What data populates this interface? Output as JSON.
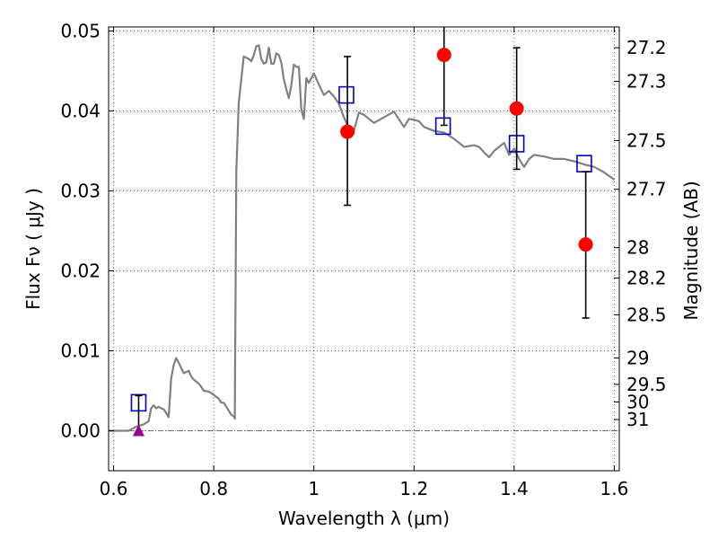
{
  "chart_data": {
    "type": "scatter",
    "xlabel": "Wavelength  λ (μm)",
    "ylabel": "Flux  Fν  ( μJy )",
    "y2label": "Magnitude (AB)",
    "xlim": [
      0.59,
      1.61
    ],
    "ylim": [
      -0.005,
      0.0505
    ],
    "x_ticks": [
      {
        "value": 0.6,
        "label": "0.6"
      },
      {
        "value": 0.8,
        "label": "0.8"
      },
      {
        "value": 1.0,
        "label": "1"
      },
      {
        "value": 1.2,
        "label": "1.2"
      },
      {
        "value": 1.4,
        "label": "1.4"
      },
      {
        "value": 1.6,
        "label": "1.6"
      }
    ],
    "y_ticks": [
      {
        "value": 0.0,
        "label": "0.00"
      },
      {
        "value": 0.01,
        "label": "0.01"
      },
      {
        "value": 0.02,
        "label": "0.02"
      },
      {
        "value": 0.03,
        "label": "0.03"
      },
      {
        "value": 0.04,
        "label": "0.04"
      },
      {
        "value": 0.05,
        "label": "0.05"
      }
    ],
    "y2_ticks": [
      {
        "label": "27.2",
        "flux": 0.0479
      },
      {
        "label": "27.3",
        "flux": 0.0437
      },
      {
        "label": "27.5",
        "flux": 0.0363
      },
      {
        "label": "27.7",
        "flux": 0.0302
      },
      {
        "label": "28",
        "flux": 0.0229
      },
      {
        "label": "28.2",
        "flux": 0.0191
      },
      {
        "label": "28.5",
        "flux": 0.0145
      },
      {
        "label": "29",
        "flux": 0.0091
      },
      {
        "label": "29.5",
        "flux": 0.0058
      },
      {
        "label": "30",
        "flux": 0.0036
      },
      {
        "label": "31",
        "flux": 0.0014
      }
    ],
    "grid": true,
    "series": [
      {
        "kind": "line",
        "color": "#808080",
        "x": [
          0.59,
          0.63,
          0.645,
          0.66,
          0.67,
          0.675,
          0.68,
          0.685,
          0.69,
          0.695,
          0.7,
          0.705,
          0.71,
          0.715,
          0.72,
          0.725,
          0.73,
          0.74,
          0.75,
          0.755,
          0.76,
          0.77,
          0.775,
          0.78,
          0.79,
          0.8,
          0.81,
          0.815,
          0.82,
          0.83,
          0.835,
          0.84,
          0.842,
          0.845,
          0.85,
          0.86,
          0.87,
          0.875,
          0.88,
          0.885,
          0.89,
          0.895,
          0.9,
          0.905,
          0.91,
          0.915,
          0.92,
          0.925,
          0.93,
          0.935,
          0.94,
          0.945,
          0.95,
          0.955,
          0.96,
          0.965,
          0.97,
          0.975,
          0.98,
          0.985,
          0.99,
          1.0,
          1.01,
          1.02,
          1.03,
          1.04,
          1.05,
          1.06,
          1.065,
          1.07,
          1.08,
          1.09,
          1.1,
          1.12,
          1.14,
          1.16,
          1.18,
          1.19,
          1.2,
          1.21,
          1.22,
          1.24,
          1.26,
          1.28,
          1.3,
          1.32,
          1.33,
          1.34,
          1.35,
          1.36,
          1.37,
          1.38,
          1.39,
          1.4,
          1.41,
          1.42,
          1.43,
          1.44,
          1.46,
          1.48,
          1.5,
          1.52,
          1.54,
          1.56,
          1.58,
          1.6
        ],
        "y": [
          0.0,
          0.0,
          0.0005,
          0.0008,
          0.0012,
          0.0028,
          0.0032,
          0.0028,
          0.003,
          0.0028,
          0.0027,
          0.0022,
          0.0017,
          0.0065,
          0.0082,
          0.0091,
          0.0085,
          0.0072,
          0.0075,
          0.0068,
          0.0064,
          0.0059,
          0.0055,
          0.005,
          0.0049,
          0.0045,
          0.004,
          0.0035,
          0.0035,
          0.0025,
          0.002,
          0.0018,
          0.0015,
          0.0324,
          0.041,
          0.0468,
          0.0465,
          0.0462,
          0.047,
          0.0481,
          0.0482,
          0.0465,
          0.0459,
          0.0461,
          0.0479,
          0.0459,
          0.0459,
          0.0472,
          0.047,
          0.046,
          0.044,
          0.0427,
          0.0416,
          0.0432,
          0.0458,
          0.0455,
          0.0455,
          0.0401,
          0.039,
          0.0441,
          0.0435,
          0.0447,
          0.0433,
          0.042,
          0.0425,
          0.0418,
          0.0409,
          0.0392,
          0.0385,
          0.037,
          0.0375,
          0.0398,
          0.0395,
          0.0385,
          0.0392,
          0.0399,
          0.038,
          0.039,
          0.0389,
          0.0387,
          0.038,
          0.0375,
          0.0373,
          0.0365,
          0.0355,
          0.0357,
          0.0355,
          0.0348,
          0.0342,
          0.035,
          0.0355,
          0.036,
          0.0345,
          0.0353,
          0.034,
          0.033,
          0.034,
          0.0345,
          0.0343,
          0.034,
          0.034,
          0.0337,
          0.0333,
          0.033,
          0.0323,
          0.0314
        ]
      },
      {
        "kind": "markers",
        "marker": "open-square",
        "color": "#0000cc",
        "x": [
          0.65,
          1.065,
          1.258,
          1.405,
          1.54
        ],
        "y": [
          0.0035,
          0.042,
          0.0381,
          0.0359,
          0.0334
        ]
      },
      {
        "kind": "markers-with-errorbars",
        "marker": "filled-circle",
        "color": "#ff0000",
        "x": [
          1.067,
          1.26,
          1.405,
          1.543
        ],
        "y": [
          0.0374,
          0.047,
          0.0403,
          0.0233
        ],
        "yerr_low": [
          0.0282,
          0.0382,
          0.0327,
          0.0141
        ],
        "yerr_high": [
          0.0468,
          0.054,
          0.0479,
          0.0324
        ]
      },
      {
        "kind": "upper-limit",
        "marker": "filled-triangle",
        "color": "#990099",
        "x": [
          0.65
        ],
        "y": [
          0.0
        ],
        "yerr_high": [
          0.0044
        ]
      }
    ]
  }
}
